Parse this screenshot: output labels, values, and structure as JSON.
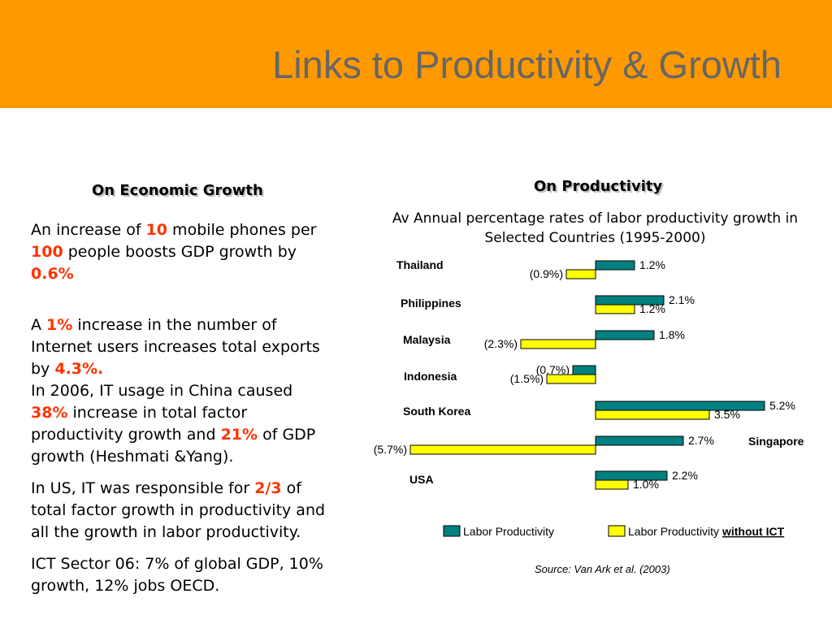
{
  "title": "Links to Productivity & Growth",
  "left": {
    "heading": "On Economic Growth",
    "p1": {
      "a": "An increase of ",
      "b": "10",
      "c": " mobile phones per ",
      "d": "100",
      "e": " people boosts GDP growth by ",
      "f": "0.6%"
    },
    "p2": {
      "a": "A ",
      "b": "1%",
      "c": " increase in the number of Internet users increases total exports by ",
      "d": "4.3%."
    },
    "p3": {
      "a": "In 2006, IT usage in China caused ",
      "b": "38%",
      "c": " increase in total factor productivity growth and ",
      "d": "21%",
      "e": " of GDP growth (Heshmati &Yang)."
    },
    "p4": {
      "a": "In US, IT was responsible for ",
      "b": "2/3",
      "c": " of total factor growth in productivity and all the growth in labor productivity."
    },
    "p5": "ICT Sector 06: 7% of global GDP, 10% growth, 12% jobs OECD."
  },
  "right": {
    "heading": "On Productivity",
    "subtitle": "Av Annual percentage rates of labor productivity growth in Selected Countries (1995-2000)",
    "source": "Source: Van Ark et al. (2003)"
  },
  "colors": {
    "header": "#ff9900",
    "highlight": "#ff3300",
    "teal": "#008080",
    "yellow": "#ffff00"
  },
  "chart_data": {
    "type": "bar",
    "orientation": "horizontal",
    "categories": [
      "Thailand",
      "Philippines",
      "Malaysia",
      "Indonesia",
      "South Korea",
      "Singapore",
      "USA"
    ],
    "series": [
      {
        "name": "Labor Productivity",
        "color": "#008080",
        "values": [
          1.2,
          2.1,
          1.8,
          -0.7,
          5.2,
          2.7,
          2.2
        ],
        "labels": [
          "1.2%",
          "2.1%",
          "1.8%",
          "(0.7%)",
          "5.2%",
          "2.7%",
          "2.2%"
        ]
      },
      {
        "name": "Labor Productivity without ICT",
        "color": "#ffff00",
        "values": [
          -0.9,
          1.2,
          -2.3,
          -1.5,
          3.5,
          -5.7,
          1.0
        ],
        "labels": [
          "(0.9%)",
          "1.2%",
          "(2.3%)",
          "(1.5%)",
          "3.5%",
          "(5.7%)",
          "1.0%"
        ]
      }
    ],
    "legend": {
      "items": [
        "Labor Productivity",
        "Labor Productivity without ICT"
      ],
      "placement": "bottom"
    }
  }
}
